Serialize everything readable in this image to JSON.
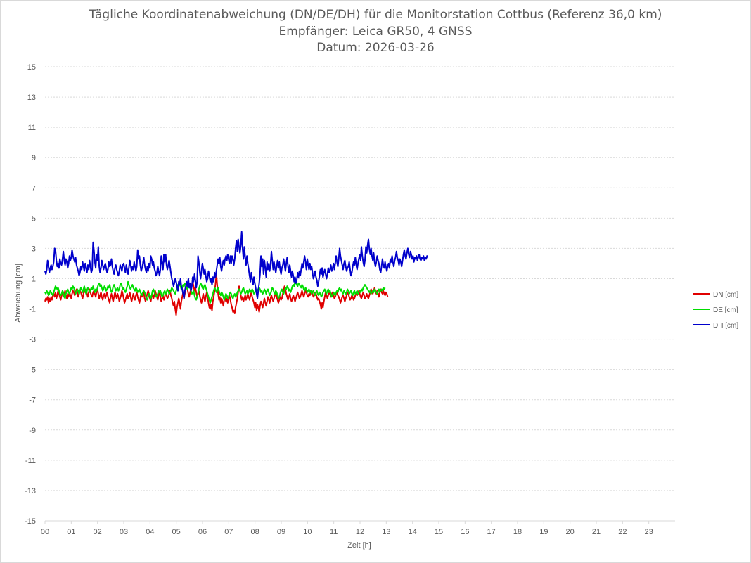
{
  "chart_data": {
    "type": "line",
    "title": "Tägliche Koordinatenabweichung (DN/DE/DH) für die Monitorstation Cottbus (Referenz 36,0 km)",
    "subtitle": "Empfänger: Leica GR50, 4 GNSS",
    "date_line": "Datum: 2026-03-26",
    "xlabel": "Zeit [h]",
    "ylabel": "Abweichung [cm]",
    "xlim": [
      0,
      24
    ],
    "ylim": [
      -15,
      15
    ],
    "x_ticks": [
      "00",
      "01",
      "02",
      "03",
      "04",
      "05",
      "06",
      "07",
      "08",
      "09",
      "10",
      "11",
      "12",
      "13",
      "14",
      "15",
      "16",
      "17",
      "18",
      "19",
      "20",
      "21",
      "22",
      "23"
    ],
    "y_ticks": [
      15,
      13,
      11,
      9,
      7,
      5,
      3,
      1,
      -1,
      -3,
      -5,
      -7,
      -9,
      -11,
      -13,
      -15
    ],
    "grid": "horizontal dotted",
    "legend_position": "right",
    "x_step_hours": 0.0333,
    "series": [
      {
        "name": "DN [cm]",
        "color": "#e00000",
        "values": [
          -0.5,
          -0.3,
          -0.4,
          -0.2,
          -0.6,
          -0.3,
          -0.5,
          -0.2,
          -0.4,
          -0.1,
          0.0,
          -0.2,
          0.1,
          -0.3,
          -0.1,
          0.2,
          0.0,
          -0.2,
          -0.4,
          -0.1,
          0.1,
          -0.2,
          0.0,
          0.2,
          -0.1,
          -0.3,
          0.0,
          -0.2,
          0.1,
          -0.1,
          -0.3,
          0.0,
          0.2,
          0.1,
          -0.1,
          0.0,
          0.3,
          0.1,
          -0.2,
          0.0,
          0.2,
          0.1,
          -0.1,
          -0.3,
          0.0,
          0.2,
          0.1,
          0.3,
          0.0,
          -0.2,
          0.1,
          0.3,
          0.1,
          -0.1,
          -0.2,
          0.1,
          0.2,
          0.0,
          -0.2,
          0.1,
          0.3,
          0.0,
          -0.3,
          -0.1,
          0.1,
          -0.2,
          -0.4,
          -0.1,
          0.0,
          -0.3,
          -0.1,
          0.1,
          -0.2,
          -0.4,
          -0.6,
          -0.2,
          0.0,
          -0.3,
          -0.5,
          -0.2,
          0.1,
          -0.1,
          -0.3,
          0.0,
          -0.2,
          -0.5,
          -0.3,
          -0.1,
          0.2,
          0.0,
          -0.3,
          -0.6,
          -0.4,
          -0.2,
          0.0,
          -0.3,
          -0.2,
          0.1,
          -0.2,
          -0.5,
          -0.3,
          0.0,
          -0.2,
          -0.4,
          -0.1,
          0.1,
          -0.2,
          -0.4,
          -0.6,
          -0.3,
          0.0,
          -0.2,
          -0.1,
          0.1,
          -0.3,
          -0.5,
          -0.2,
          0.0,
          0.2,
          0.0,
          -0.3,
          -0.5,
          -0.2,
          0.0,
          -0.3,
          -0.1,
          0.2,
          0.0,
          -0.2,
          -0.4,
          -0.1,
          0.1,
          -0.2,
          -0.5,
          -0.3,
          -0.1,
          -0.4,
          -0.2,
          0.1,
          -0.1,
          -0.3,
          -0.2,
          0.0,
          0.2,
          -0.1,
          -0.3,
          -0.6,
          -0.8,
          -0.5,
          -1.0,
          -1.4,
          -0.9,
          -0.6,
          -0.3,
          -0.6,
          -1.0,
          -0.5,
          -0.2,
          0.1,
          -0.3,
          0.0,
          0.3,
          0.6,
          0.3,
          0.0,
          -0.2,
          0.1,
          0.3,
          0.6,
          0.8,
          0.5,
          0.2,
          0.4,
          0.1,
          -0.2,
          0.0,
          0.2,
          -0.1,
          -0.4,
          -0.6,
          -0.3,
          0.0,
          -0.3,
          -0.5,
          -0.2,
          0.1,
          -0.2,
          -0.6,
          -0.9,
          -1.0,
          -0.7,
          -1.1,
          -0.5,
          -0.2,
          0.2,
          0.6,
          1.3,
          0.6,
          0.0,
          -0.4,
          -0.2,
          -0.6,
          -0.3,
          -0.5,
          -0.8,
          -0.4,
          -0.2,
          -0.5,
          -0.3,
          -0.6,
          -0.3,
          -0.1,
          -0.4,
          -0.7,
          -0.9,
          -1.2,
          -1.1,
          -1.3,
          -0.9,
          -0.6,
          -0.3,
          0.1,
          0.5,
          0.2,
          -0.1,
          -0.4,
          -0.2,
          -0.5,
          -0.3,
          -0.1,
          -0.4,
          -0.2,
          0.0,
          -0.2,
          -0.4,
          -0.1,
          0.1,
          -0.2,
          -0.4,
          -0.6,
          -0.9,
          -0.6,
          -1.1,
          -0.7,
          -0.9,
          -1.2,
          -0.8,
          -0.5,
          -0.7,
          -0.9,
          -0.6,
          -0.3,
          -0.6,
          -0.8,
          -0.5,
          -0.2,
          -0.4,
          -0.6,
          -0.3,
          -0.1,
          -0.3,
          -0.5,
          -0.3,
          -0.1,
          0.1,
          -0.2,
          -0.4,
          -0.6,
          -0.4,
          -0.2,
          -0.4,
          -0.3,
          0.0,
          0.2,
          0.5,
          0.3,
          0.0,
          -0.2,
          -0.4,
          -0.2,
          0.0,
          -0.3,
          -0.5,
          -0.3,
          -0.1,
          -0.3,
          -0.5,
          -0.3,
          -0.1,
          0.1,
          -0.1,
          -0.3,
          -0.2,
          0.0,
          0.2,
          0.0,
          -0.2,
          0.0,
          0.2,
          0.1,
          -0.1,
          -0.2,
          0.0,
          -0.1,
          0.1,
          0.2,
          0.0,
          -0.2,
          -0.1,
          0.1,
          0.0,
          -0.2,
          -0.4,
          -0.3,
          -0.5,
          -0.7,
          -1.0,
          -0.6,
          -0.9,
          -0.5,
          -0.2,
          0.1,
          -0.1,
          -0.3,
          -0.1,
          0.1,
          0.0,
          -0.2,
          0.0,
          0.1,
          -0.1,
          -0.3,
          -0.2,
          0.0,
          0.1,
          -0.1,
          -0.2,
          -0.4,
          -0.6,
          -0.4,
          -0.2,
          -0.1,
          -0.3,
          -0.5,
          -0.3,
          -0.1,
          0.1,
          0.0,
          -0.2,
          -0.4,
          -0.3,
          -0.1,
          -0.2,
          -0.4,
          -0.3,
          -0.1,
          0.1,
          -0.1,
          0.0,
          0.2,
          0.0,
          -0.2,
          -0.3,
          -0.1,
          0.1,
          -0.1,
          -0.3,
          -0.2,
          0.0,
          -0.2,
          -0.3,
          -0.1,
          0.1,
          0.3,
          0.1,
          0.0,
          0.2,
          0.4,
          0.2,
          0.0,
          0.2,
          0.0,
          -0.2,
          0.1,
          0.3,
          0.1,
          0.0,
          0.2,
          0.0,
          -0.1,
          0.1,
          0.0,
          -0.2
        ]
      },
      {
        "name": "DE [cm]",
        "color": "#00dd00",
        "values": [
          0.1,
          0.0,
          0.2,
          0.1,
          -0.1,
          0.0,
          0.2,
          0.1,
          0.0,
          -0.1,
          0.1,
          0.3,
          0.5,
          0.4,
          0.3,
          0.4,
          0.2,
          0.0,
          -0.1,
          0.0,
          0.2,
          0.1,
          -0.2,
          -0.3,
          0.0,
          0.2,
          0.3,
          0.1,
          0.0,
          0.2,
          0.4,
          0.3,
          0.5,
          0.4,
          0.2,
          0.0,
          0.1,
          0.3,
          0.2,
          0.0,
          0.2,
          0.4,
          0.3,
          0.1,
          0.3,
          0.5,
          0.2,
          0.0,
          0.2,
          0.4,
          0.3,
          0.1,
          0.2,
          0.4,
          0.3,
          0.5,
          0.3,
          0.1,
          0.3,
          0.2,
          0.4,
          0.6,
          0.7,
          0.5,
          0.6,
          0.4,
          0.2,
          0.3,
          0.5,
          0.4,
          0.2,
          0.3,
          0.5,
          0.4,
          0.6,
          0.3,
          0.1,
          0.2,
          0.5,
          0.6,
          0.4,
          0.2,
          0.3,
          0.4,
          0.2,
          0.3,
          0.6,
          0.7,
          0.5,
          0.3,
          0.4,
          0.2,
          0.1,
          0.3,
          0.5,
          0.8,
          0.6,
          0.4,
          0.3,
          0.5,
          0.6,
          0.4,
          0.3,
          0.2,
          0.4,
          0.3,
          0.1,
          0.2,
          0.3,
          0.1,
          0.0,
          -0.1,
          0.1,
          0.2,
          0.1,
          -0.1,
          -0.3,
          -0.4,
          -0.2,
          0.0,
          -0.1,
          -0.3,
          -0.1,
          0.2,
          0.3,
          0.1,
          0.0,
          -0.2,
          -0.1,
          0.0,
          0.2,
          0.1,
          0.2,
          0.0,
          -0.2,
          -0.1,
          0.1,
          0.2,
          0.0,
          0.1,
          0.3,
          0.2,
          0.0,
          0.1,
          0.2,
          0.4,
          0.3,
          0.2,
          0.1,
          0.0,
          0.2,
          0.4,
          0.6,
          0.5,
          0.7,
          0.5,
          0.3,
          0.4,
          0.6,
          0.5,
          0.7,
          0.6,
          0.4,
          0.3,
          0.5,
          0.6,
          0.4,
          0.2,
          0.0,
          0.1,
          0.2,
          -0.1,
          -0.3,
          -0.4,
          -0.2,
          0.0,
          0.3,
          0.5,
          0.7,
          0.6,
          0.4,
          0.3,
          0.5,
          0.6,
          0.4,
          0.2,
          0.0,
          -0.2,
          -0.4,
          -0.6,
          -0.4,
          -0.2,
          0.0,
          0.2,
          0.4,
          0.3,
          0.1,
          0.2,
          0.4,
          0.2,
          0.0,
          -0.1,
          0.1,
          0.0,
          -0.2,
          -0.4,
          -0.2,
          0.0,
          -0.1,
          -0.3,
          -0.2,
          0.0,
          0.1,
          0.0,
          -0.2,
          -0.3,
          -0.1,
          0.0,
          -0.2,
          -0.1,
          0.1,
          0.2,
          0.3,
          0.2,
          0.0,
          0.1,
          0.3,
          0.4,
          0.2,
          0.0,
          0.1,
          0.2,
          0.0,
          0.1,
          0.3,
          0.2,
          0.1,
          0.3,
          0.2,
          0.0,
          0.1,
          0.2,
          0.1,
          0.3,
          0.2,
          0.4,
          0.3,
          0.1,
          0.2,
          0.0,
          0.1,
          0.3,
          0.2,
          0.0,
          0.2,
          0.3,
          0.1,
          -0.1,
          0.0,
          0.2,
          0.4,
          0.3,
          0.1,
          0.0,
          0.2,
          0.1,
          -0.1,
          -0.3,
          -0.2,
          0.0,
          0.2,
          0.3,
          0.1,
          0.0,
          0.2,
          0.4,
          0.3,
          0.5,
          0.4,
          0.2,
          0.3,
          0.1,
          0.3,
          0.5,
          0.6,
          0.5,
          0.8,
          0.7,
          0.6,
          0.5,
          0.7,
          0.6,
          0.5,
          0.4,
          0.6,
          0.5,
          0.3,
          0.2,
          0.4,
          0.3,
          0.1,
          0.2,
          0.3,
          0.1,
          0.2,
          0.0,
          0.1,
          0.2,
          0.0,
          -0.1,
          0.1,
          0.2,
          0.0,
          -0.1,
          0.1,
          0.0,
          -0.2,
          -0.1,
          0.1,
          0.2,
          0.3,
          0.1,
          0.0,
          0.2,
          0.3,
          0.1,
          0.2,
          0.0,
          -0.2,
          -0.1,
          0.1,
          0.0,
          -0.1,
          0.1,
          0.2,
          0.1,
          0.3,
          0.4,
          0.2,
          0.3,
          0.1,
          0.0,
          0.2,
          0.1,
          0.0,
          0.1,
          0.3,
          0.2,
          0.0,
          0.1,
          0.2,
          0.0,
          -0.1,
          0.1,
          0.2,
          0.0,
          0.1,
          0.2,
          0.0,
          0.1,
          0.2,
          0.1,
          0.3,
          0.2,
          0.4,
          0.5,
          0.6,
          0.5,
          0.4,
          0.3,
          0.2,
          0.1,
          0.2,
          0.0,
          0.1,
          0.2,
          0.1,
          0.3,
          0.2,
          0.1,
          0.0,
          0.2,
          0.3,
          0.1,
          0.2,
          0.3,
          0.2,
          0.4,
          0.3,
          0.4
        ]
      },
      {
        "name": "DH [cm]",
        "color": "#0000cc",
        "values": [
          1.5,
          1.3,
          1.6,
          2.2,
          1.8,
          1.4,
          1.7,
          1.9,
          1.6,
          1.8,
          2.1,
          3.0,
          2.9,
          2.2,
          1.8,
          2.0,
          1.7,
          2.3,
          2.0,
          1.9,
          2.3,
          2.8,
          2.2,
          1.9,
          2.3,
          2.1,
          1.7,
          2.0,
          2.5,
          2.2,
          2.4,
          2.9,
          2.5,
          2.3,
          2.1,
          2.4,
          1.9,
          1.7,
          1.5,
          1.2,
          1.4,
          1.8,
          1.6,
          2.1,
          1.8,
          1.5,
          2.0,
          1.7,
          1.4,
          1.9,
          1.6,
          2.2,
          1.8,
          1.4,
          1.6,
          3.4,
          2.9,
          2.1,
          1.7,
          2.6,
          2.2,
          3.1,
          1.8,
          1.4,
          1.7,
          2.2,
          1.9,
          1.6,
          1.8,
          2.0,
          1.7,
          1.4,
          1.6,
          2.1,
          1.8,
          1.9,
          2.3,
          1.8,
          1.5,
          1.3,
          1.7,
          1.9,
          1.6,
          1.4,
          1.2,
          1.5,
          1.9,
          1.7,
          1.5,
          1.9,
          2.0,
          1.7,
          1.4,
          1.9,
          1.6,
          1.3,
          1.7,
          2.2,
          1.9,
          1.5,
          1.8,
          1.6,
          2.1,
          1.8,
          1.5,
          1.8,
          2.9,
          2.3,
          2.5,
          1.9,
          1.5,
          1.7,
          2.0,
          2.4,
          1.9,
          1.6,
          1.4,
          1.8,
          1.5,
          2.0,
          1.7,
          2.5,
          2.3,
          1.9,
          2.1,
          1.7,
          1.5,
          1.2,
          1.4,
          1.8,
          1.5,
          1.2,
          1.6,
          2.5,
          2.0,
          1.6,
          2.6,
          2.1,
          2.6,
          1.9,
          1.6,
          1.9,
          2.2,
          1.8,
          1.4,
          1.0,
          0.8,
          0.5,
          0.7,
          1.0,
          0.8,
          0.5,
          0.2,
          0.8,
          0.6,
          1.0,
          0.5,
          0.3,
          0.0,
          -0.3,
          0.2,
          0.5,
          0.8,
          0.5,
          1.0,
          0.4,
          0.7,
          0.2,
          0.5,
          1.1,
          0.8,
          1.3,
          0.9,
          0.4,
          0.8,
          2.5,
          2.1,
          1.5,
          1.0,
          1.5,
          2.0,
          1.7,
          1.3,
          1.6,
          1.2,
          0.8,
          1.0,
          1.5,
          1.2,
          0.8,
          1.0,
          0.6,
          1.1,
          0.8,
          1.4,
          1.1,
          1.5,
          1.9,
          2.3,
          2.0,
          2.4,
          1.8,
          1.5,
          1.9,
          2.2,
          1.9,
          2.3,
          2.5,
          2.2,
          2.6,
          2.3,
          2.0,
          2.5,
          2.0,
          2.5,
          2.3,
          1.9,
          2.3,
          3.0,
          3.5,
          2.8,
          3.6,
          3.1,
          2.7,
          3.2,
          4.1,
          3.0,
          2.3,
          3.1,
          2.4,
          1.9,
          2.5,
          2.0,
          1.6,
          1.2,
          0.8,
          1.4,
          1.0,
          0.6,
          1.1,
          0.7,
          0.4,
          0.0,
          -0.3,
          0.2,
          0.7,
          1.3,
          2.5,
          1.8,
          2.3,
          1.3,
          2.2,
          1.7,
          1.1,
          2.1,
          1.6,
          2.0,
          1.5,
          1.9,
          2.8,
          2.2,
          1.6,
          2.1,
          1.7,
          1.4,
          1.8,
          2.2,
          1.7,
          2.1,
          1.6,
          1.3,
          1.7,
          1.9,
          2.3,
          1.9,
          1.5,
          2.0,
          2.4,
          1.8,
          1.4,
          1.9,
          1.5,
          1.1,
          1.5,
          1.2,
          0.8,
          1.1,
          0.7,
          0.9,
          1.4,
          1.1,
          1.5,
          1.2,
          1.6,
          2.0,
          1.7,
          2.1,
          2.5,
          2.1,
          1.6,
          2.3,
          1.9,
          1.6,
          2.0,
          1.6,
          1.8,
          1.4,
          1.0,
          1.2,
          1.5,
          1.1,
          0.9,
          0.5,
          0.8,
          1.2,
          1.6,
          1.3,
          1.7,
          1.1,
          1.4,
          1.6,
          1.3,
          1.0,
          1.3,
          1.7,
          1.4,
          1.6,
          1.9,
          1.5,
          1.7,
          2.0,
          1.6,
          2.0,
          2.5,
          2.1,
          1.8,
          2.3,
          3.0,
          2.5,
          2.2,
          1.9,
          1.6,
          2.0,
          2.2,
          1.8,
          1.5,
          1.7,
          1.8,
          2.1,
          1.6,
          1.2,
          1.4,
          1.8,
          2.1,
          1.9,
          2.4,
          1.9,
          1.6,
          2.0,
          2.3,
          2.6,
          2.2,
          3.1,
          2.5,
          2.1,
          1.8,
          2.2,
          3.1,
          2.7,
          3.2,
          3.6,
          3.0,
          2.6,
          3.0,
          2.5,
          2.2,
          2.7,
          2.1,
          1.8,
          2.1,
          2.5,
          2.2,
          2.0,
          1.6,
          1.4,
          1.8,
          2.3,
          1.9,
          1.7,
          2.1,
          1.8,
          1.5,
          1.8,
          2.0,
          1.7,
          2.3,
          2.1,
          2.5,
          2.1,
          1.8,
          2.2,
          2.4,
          2.8,
          2.4,
          2.2,
          1.9,
          2.3,
          2.1,
          1.8,
          2.2,
          2.6,
          2.9,
          2.5,
          2.3,
          2.7,
          3.0,
          2.6,
          2.4,
          2.8,
          2.6,
          2.3,
          2.5,
          2.1,
          2.4,
          2.3,
          2.5,
          2.2,
          2.4,
          2.6,
          2.3,
          2.2,
          2.4,
          2.3,
          2.5,
          2.2,
          2.4,
          2.3,
          2.5,
          2.4
        ]
      }
    ]
  }
}
